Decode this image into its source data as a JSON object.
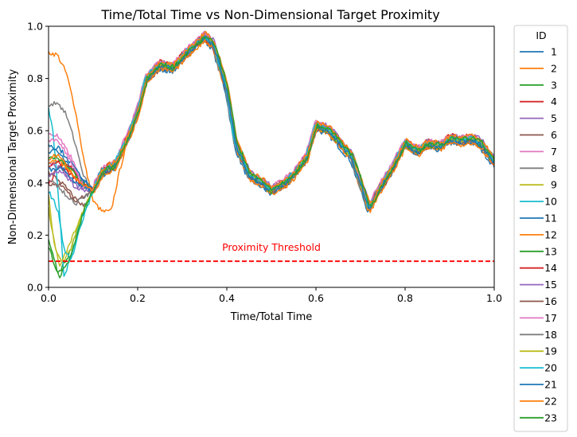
{
  "chart_data": {
    "type": "line",
    "title": "Time/Total Time vs Non-Dimensional Target Proximity",
    "xlabel": "Time/Total Time",
    "ylabel": "Non-Dimensional Target Proximity",
    "xlim": [
      0,
      1
    ],
    "ylim": [
      0,
      1
    ],
    "xticks": [
      "0.0",
      "0.2",
      "0.4",
      "0.6",
      "0.8",
      "1.0"
    ],
    "yticks": [
      "0.0",
      "0.2",
      "0.4",
      "0.6",
      "0.8",
      "1.0"
    ],
    "grid": false,
    "legend": {
      "title": "ID",
      "placement": "outside-right"
    },
    "threshold": {
      "y": 0.1,
      "label": "Proximity Threshold",
      "color": "#ff0000",
      "style": "dashed"
    },
    "common_trajectory": {
      "x": [
        0.1,
        0.12,
        0.15,
        0.18,
        0.2,
        0.22,
        0.25,
        0.28,
        0.3,
        0.33,
        0.35,
        0.37,
        0.4,
        0.42,
        0.45,
        0.48,
        0.5,
        0.53,
        0.55,
        0.58,
        0.6,
        0.63,
        0.65,
        0.68,
        0.7,
        0.72,
        0.74,
        0.77,
        0.8,
        0.83,
        0.85,
        0.88,
        0.9,
        0.92,
        0.95,
        0.97,
        1.0
      ],
      "y": [
        0.37,
        0.44,
        0.47,
        0.58,
        0.67,
        0.8,
        0.85,
        0.84,
        0.88,
        0.93,
        0.96,
        0.93,
        0.76,
        0.55,
        0.43,
        0.4,
        0.37,
        0.4,
        0.43,
        0.5,
        0.62,
        0.6,
        0.56,
        0.5,
        0.4,
        0.3,
        0.37,
        0.45,
        0.55,
        0.52,
        0.55,
        0.54,
        0.57,
        0.56,
        0.57,
        0.55,
        0.48
      ]
    },
    "series": [
      {
        "name": "1",
        "color": "#1f77b4",
        "start": [
          [
            0,
            0.55
          ],
          [
            0.03,
            0.5
          ],
          [
            0.06,
            0.44
          ],
          [
            0.1,
            0.37
          ]
        ]
      },
      {
        "name": "2",
        "color": "#ff7f0e",
        "start": [
          [
            0,
            0.9
          ],
          [
            0.02,
            0.89
          ],
          [
            0.04,
            0.82
          ],
          [
            0.06,
            0.68
          ],
          [
            0.08,
            0.48
          ],
          [
            0.1,
            0.33
          ],
          [
            0.12,
            0.29
          ],
          [
            0.14,
            0.29
          ],
          [
            0.16,
            0.45
          ],
          [
            0.18,
            0.58
          ]
        ]
      },
      {
        "name": "3",
        "color": "#2ca02c",
        "start": [
          [
            0,
            0.16
          ],
          [
            0.02,
            0.05
          ],
          [
            0.04,
            0.1
          ],
          [
            0.07,
            0.25
          ],
          [
            0.1,
            0.37
          ]
        ]
      },
      {
        "name": "4",
        "color": "#d62728",
        "start": [
          [
            0,
            0.39
          ],
          [
            0.02,
            0.46
          ],
          [
            0.04,
            0.48
          ],
          [
            0.07,
            0.41
          ],
          [
            0.1,
            0.37
          ]
        ]
      },
      {
        "name": "5",
        "color": "#9467bd",
        "start": [
          [
            0,
            0.48
          ],
          [
            0.03,
            0.45
          ],
          [
            0.06,
            0.38
          ],
          [
            0.1,
            0.37
          ]
        ]
      },
      {
        "name": "6",
        "color": "#8c564b",
        "start": [
          [
            0,
            0.44
          ],
          [
            0.03,
            0.4
          ],
          [
            0.06,
            0.34
          ],
          [
            0.08,
            0.31
          ],
          [
            0.1,
            0.37
          ]
        ]
      },
      {
        "name": "7",
        "color": "#e377c2",
        "start": [
          [
            0,
            0.59
          ],
          [
            0.02,
            0.58
          ],
          [
            0.05,
            0.5
          ],
          [
            0.08,
            0.38
          ],
          [
            0.1,
            0.37
          ]
        ]
      },
      {
        "name": "8",
        "color": "#7f7f7f",
        "start": [
          [
            0,
            0.7
          ],
          [
            0.02,
            0.71
          ],
          [
            0.04,
            0.66
          ],
          [
            0.06,
            0.55
          ],
          [
            0.08,
            0.42
          ],
          [
            0.1,
            0.37
          ]
        ]
      },
      {
        "name": "9",
        "color": "#bcbd22",
        "start": [
          [
            0,
            0.35
          ],
          [
            0.01,
            0.2
          ],
          [
            0.025,
            0.08
          ],
          [
            0.05,
            0.15
          ],
          [
            0.08,
            0.3
          ],
          [
            0.1,
            0.37
          ]
        ]
      },
      {
        "name": "10",
        "color": "#17becf",
        "start": [
          [
            0,
            0.68
          ],
          [
            0.01,
            0.6
          ],
          [
            0.02,
            0.4
          ],
          [
            0.035,
            0.03
          ],
          [
            0.05,
            0.12
          ],
          [
            0.08,
            0.3
          ],
          [
            0.1,
            0.37
          ]
        ]
      },
      {
        "name": "11",
        "color": "#1f77b4",
        "start": [
          [
            0,
            0.52
          ],
          [
            0.02,
            0.54
          ],
          [
            0.04,
            0.5
          ],
          [
            0.07,
            0.43
          ],
          [
            0.1,
            0.37
          ]
        ]
      },
      {
        "name": "12",
        "color": "#ff7f0e",
        "start": [
          [
            0,
            0.47
          ],
          [
            0.02,
            0.49
          ],
          [
            0.04,
            0.46
          ],
          [
            0.07,
            0.4
          ],
          [
            0.1,
            0.37
          ]
        ]
      },
      {
        "name": "13",
        "color": "#2ca02c",
        "start": [
          [
            0,
            0.5
          ],
          [
            0.02,
            0.5
          ],
          [
            0.05,
            0.45
          ],
          [
            0.08,
            0.39
          ],
          [
            0.1,
            0.37
          ]
        ]
      },
      {
        "name": "14",
        "color": "#d62728",
        "start": [
          [
            0,
            0.46
          ],
          [
            0.02,
            0.48
          ],
          [
            0.05,
            0.43
          ],
          [
            0.08,
            0.39
          ],
          [
            0.1,
            0.37
          ]
        ]
      },
      {
        "name": "15",
        "color": "#9467bd",
        "start": [
          [
            0,
            0.43
          ],
          [
            0.03,
            0.45
          ],
          [
            0.06,
            0.39
          ],
          [
            0.1,
            0.37
          ]
        ]
      },
      {
        "name": "16",
        "color": "#8c564b",
        "start": [
          [
            0,
            0.4
          ],
          [
            0.03,
            0.39
          ],
          [
            0.06,
            0.33
          ],
          [
            0.1,
            0.37
          ]
        ]
      },
      {
        "name": "17",
        "color": "#e377c2",
        "start": [
          [
            0,
            0.56
          ],
          [
            0.02,
            0.57
          ],
          [
            0.05,
            0.48
          ],
          [
            0.08,
            0.38
          ],
          [
            0.1,
            0.37
          ]
        ]
      },
      {
        "name": "18",
        "color": "#7f7f7f",
        "start": [
          [
            0,
            0.42
          ],
          [
            0.03,
            0.37
          ],
          [
            0.06,
            0.32
          ],
          [
            0.1,
            0.37
          ]
        ]
      },
      {
        "name": "19",
        "color": "#bcbd22",
        "start": [
          [
            0,
            0.3
          ],
          [
            0.015,
            0.15
          ],
          [
            0.03,
            0.1
          ],
          [
            0.05,
            0.18
          ],
          [
            0.08,
            0.3
          ],
          [
            0.1,
            0.37
          ]
        ]
      },
      {
        "name": "20",
        "color": "#17becf",
        "start": [
          [
            0,
            0.37
          ],
          [
            0.02,
            0.3
          ],
          [
            0.035,
            0.15
          ],
          [
            0.05,
            0.1
          ],
          [
            0.08,
            0.28
          ],
          [
            0.1,
            0.37
          ]
        ]
      },
      {
        "name": "21",
        "color": "#1f77b4",
        "start": [
          [
            0,
            0.45
          ],
          [
            0.03,
            0.46
          ],
          [
            0.06,
            0.4
          ],
          [
            0.1,
            0.37
          ]
        ]
      },
      {
        "name": "22",
        "color": "#ff7f0e",
        "start": [
          [
            0,
            0.49
          ],
          [
            0.02,
            0.51
          ],
          [
            0.05,
            0.44
          ],
          [
            0.08,
            0.39
          ],
          [
            0.1,
            0.37
          ]
        ]
      },
      {
        "name": "23",
        "color": "#2ca02c",
        "start": [
          [
            0,
            0.18
          ],
          [
            0.01,
            0.12
          ],
          [
            0.025,
            0.04
          ],
          [
            0.05,
            0.12
          ],
          [
            0.08,
            0.3
          ],
          [
            0.1,
            0.37
          ]
        ]
      }
    ]
  }
}
